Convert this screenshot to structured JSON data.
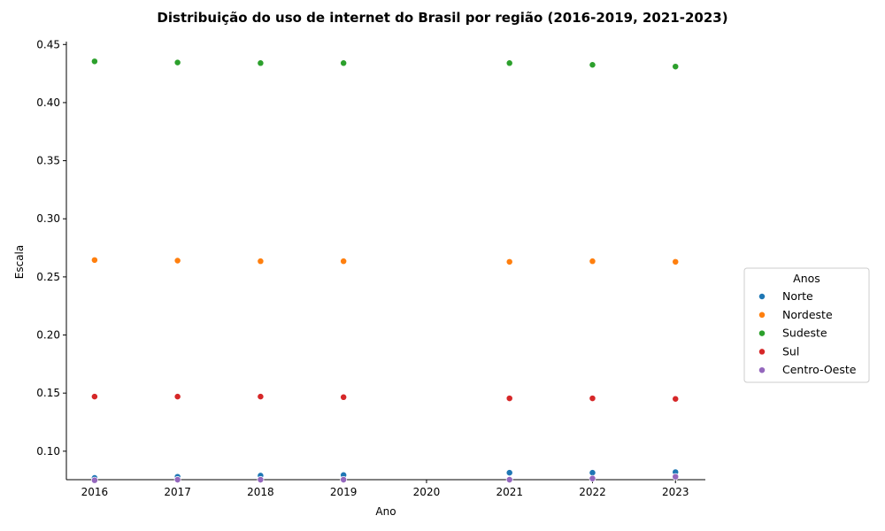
{
  "chart_data": {
    "type": "scatter",
    "title": "Distribuição do uso de internet do Brasil por região (2016-2019, 2021-2023)",
    "xlabel": "Ano",
    "ylabel": "Escala",
    "xlim": [
      2015.66,
      2023.36
    ],
    "ylim": [
      0.0755,
      0.4525
    ],
    "x_ticks": [
      "2016",
      "2017",
      "2018",
      "2019",
      "2020",
      "2021",
      "2022",
      "2023"
    ],
    "y_ticks": [
      "0.10",
      "0.15",
      "0.20",
      "0.25",
      "0.30",
      "0.35",
      "0.40",
      "0.45"
    ],
    "grid": false,
    "legend": {
      "title": "Anos",
      "position": "outside-right"
    },
    "x": [
      2016,
      2017,
      2018,
      2019,
      2021,
      2022,
      2023
    ],
    "series": [
      {
        "name": "Norte",
        "color": "#1f77b4",
        "values": [
          0.077,
          0.078,
          0.079,
          0.0795,
          0.0815,
          0.0815,
          0.082
        ]
      },
      {
        "name": "Nordeste",
        "color": "#ff7f0e",
        "values": [
          0.2645,
          0.264,
          0.2635,
          0.2635,
          0.263,
          0.2635,
          0.263
        ]
      },
      {
        "name": "Sudeste",
        "color": "#2ca02c",
        "values": [
          0.4355,
          0.4345,
          0.434,
          0.434,
          0.434,
          0.4325,
          0.431
        ]
      },
      {
        "name": "Sul",
        "color": "#d62728",
        "values": [
          0.147,
          0.147,
          0.147,
          0.1465,
          0.1455,
          0.1455,
          0.145
        ]
      },
      {
        "name": "Centro-Oeste",
        "color": "#9467bd",
        "values": [
          0.075,
          0.0755,
          0.0755,
          0.0755,
          0.0755,
          0.0765,
          0.078
        ]
      }
    ]
  }
}
